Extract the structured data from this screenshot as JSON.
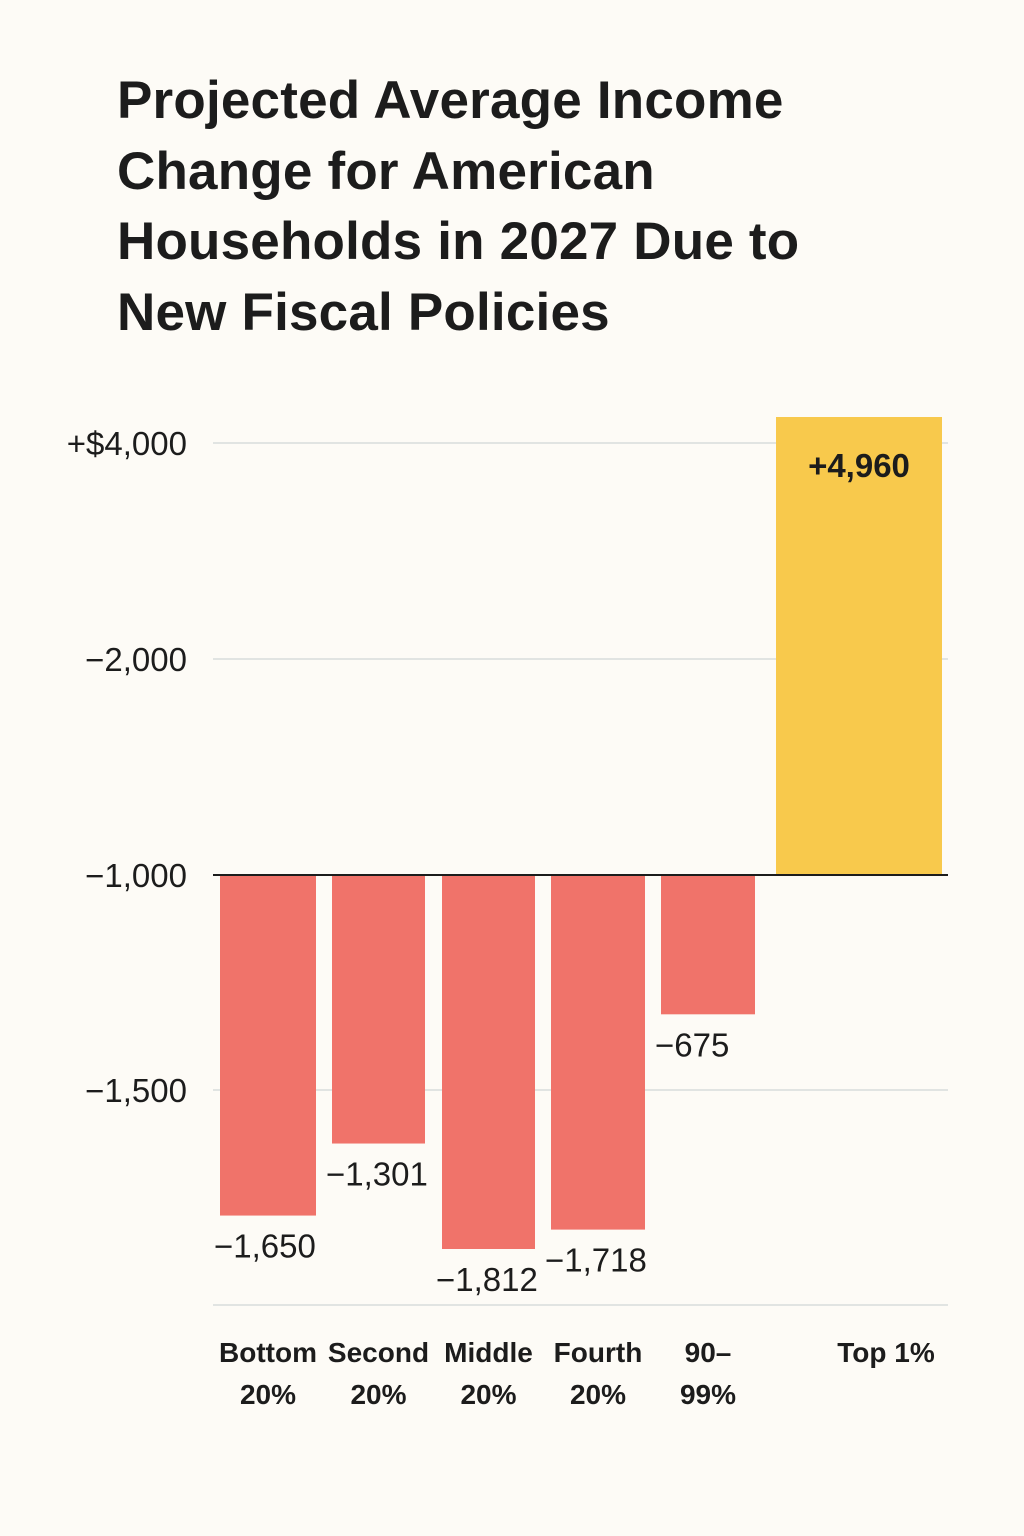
{
  "chart_data": {
    "type": "bar",
    "title": "Projected Average Income Change for American Households in 2027 Due to New Fiscal Policies",
    "xlabel": "",
    "ylabel": "",
    "categories": [
      [
        "Bottom",
        "20%"
      ],
      [
        "Second",
        "20%"
      ],
      [
        "Middle",
        "20%"
      ],
      [
        "Fourth",
        "20%"
      ],
      [
        "90–",
        "99%"
      ],
      [
        "Top 1%"
      ]
    ],
    "values": [
      -1650,
      -1301,
      -1812,
      -1718,
      -675,
      4960
    ],
    "value_labels": [
      "−1,650",
      "−1,301",
      "−1,812",
      "−1,718",
      "−675",
      "+4,960"
    ],
    "yticks": [
      "+$4,000",
      "−2,000",
      "−1,000",
      "−1,500",
      ""
    ],
    "ylim": [
      -2000,
      4960
    ],
    "grid": true,
    "colors": {
      "negative": "#f0736a",
      "positive": "#f8c94c",
      "grid": "#d8dcdc",
      "baseline": "#1c1c1c"
    }
  }
}
